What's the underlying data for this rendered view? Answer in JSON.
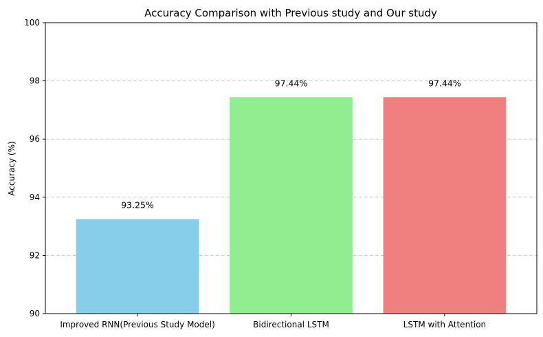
{
  "chart_data": {
    "type": "bar",
    "title": "Accuracy Comparison with Previous study and Our study",
    "xlabel": "",
    "ylabel": "Accuracy (%)",
    "categories": [
      "Improved RNN(Previous Study Model)",
      "Bidirectional LSTM",
      "LSTM with Attention"
    ],
    "values": [
      93.25,
      97.44,
      97.44
    ],
    "value_labels": [
      "93.25%",
      "97.44%",
      "97.44%"
    ],
    "colors": [
      "#87ceeb",
      "#90ee90",
      "#f08080"
    ],
    "ylim": [
      90,
      100
    ],
    "yticks": [
      90,
      92,
      94,
      96,
      98,
      100
    ],
    "grid": "y-dashed",
    "legend": "none"
  }
}
